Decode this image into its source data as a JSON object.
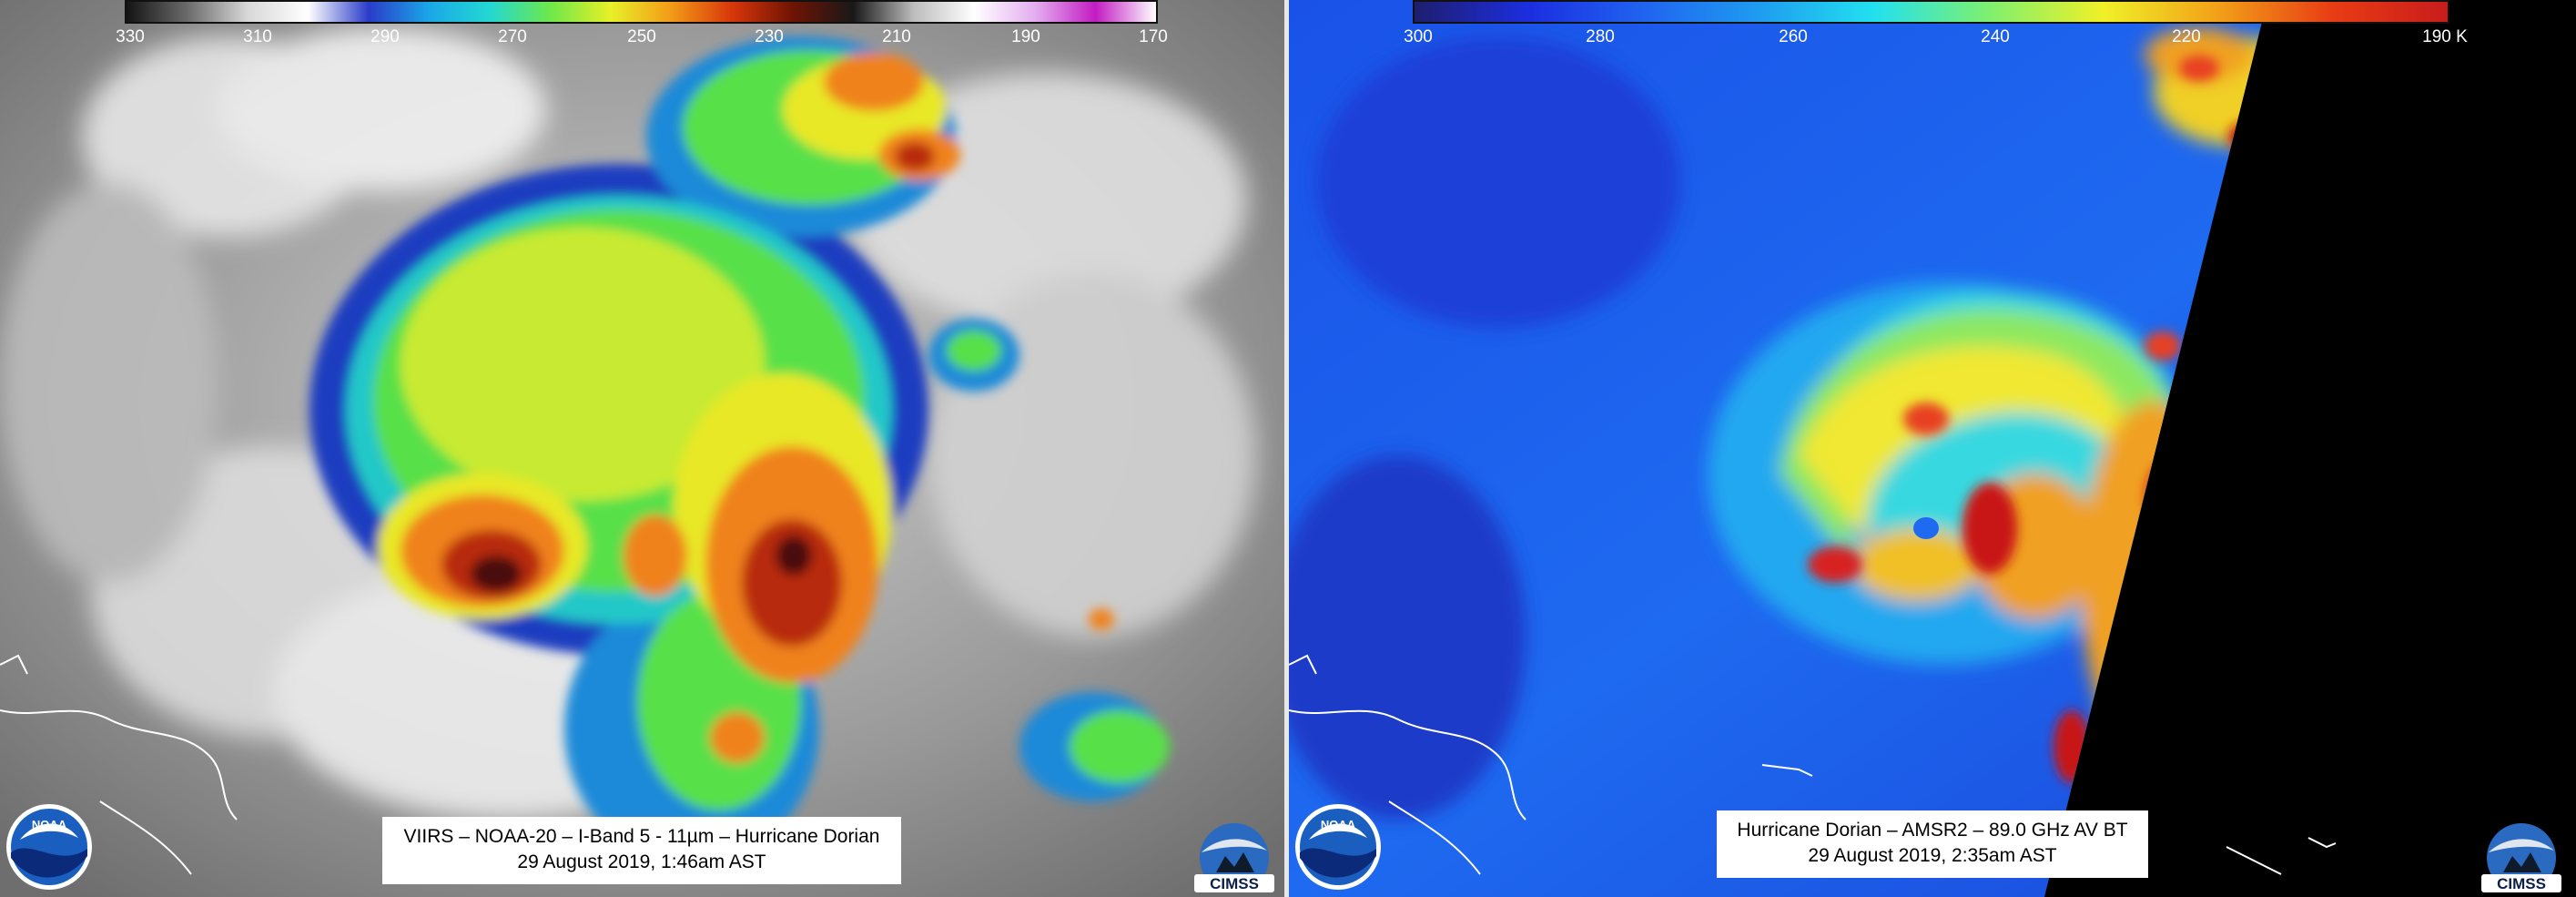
{
  "left_panel": {
    "colorbar": {
      "stops": [
        "#141414",
        "#6a6a6a",
        "#d8d8d8",
        "#ffffff",
        "#2a3cc8",
        "#1aa8e8",
        "#23d8d2",
        "#6ee84a",
        "#e8f028",
        "#f29a18",
        "#d8360a",
        "#6e1404",
        "#181818",
        "#bdbdbd",
        "#ffffff",
        "#e4aef0",
        "#c21cc2",
        "#ffffff"
      ],
      "ticks": [
        "330",
        "310",
        "290",
        "270",
        "250",
        "230",
        "210",
        "190",
        "170"
      ]
    },
    "caption": {
      "line1": "VIIRS – NOAA-20 – I-Band 5 - 11µm – Hurricane Dorian",
      "line2": "29 August 2019, 1:46am AST"
    },
    "logo_noaa": "NOAA",
    "logo_cimss": "CIMSS"
  },
  "right_panel": {
    "colorbar": {
      "stops": [
        "#1e1e6e",
        "#1c2ee0",
        "#2064f0",
        "#1e9cf0",
        "#22e0f0",
        "#7ef070",
        "#f0f028",
        "#f2a018",
        "#e83c14",
        "#c81c1c"
      ],
      "ticks": [
        "300",
        "280",
        "260",
        "240",
        "220",
        "190 K"
      ]
    },
    "caption": {
      "line1": "Hurricane Dorian – AMSR2 – 89.0 GHz AV BT",
      "line2": "29 August 2019, 2:35am AST"
    },
    "logo_noaa": "NOAA",
    "logo_cimss": "CIMSS"
  }
}
